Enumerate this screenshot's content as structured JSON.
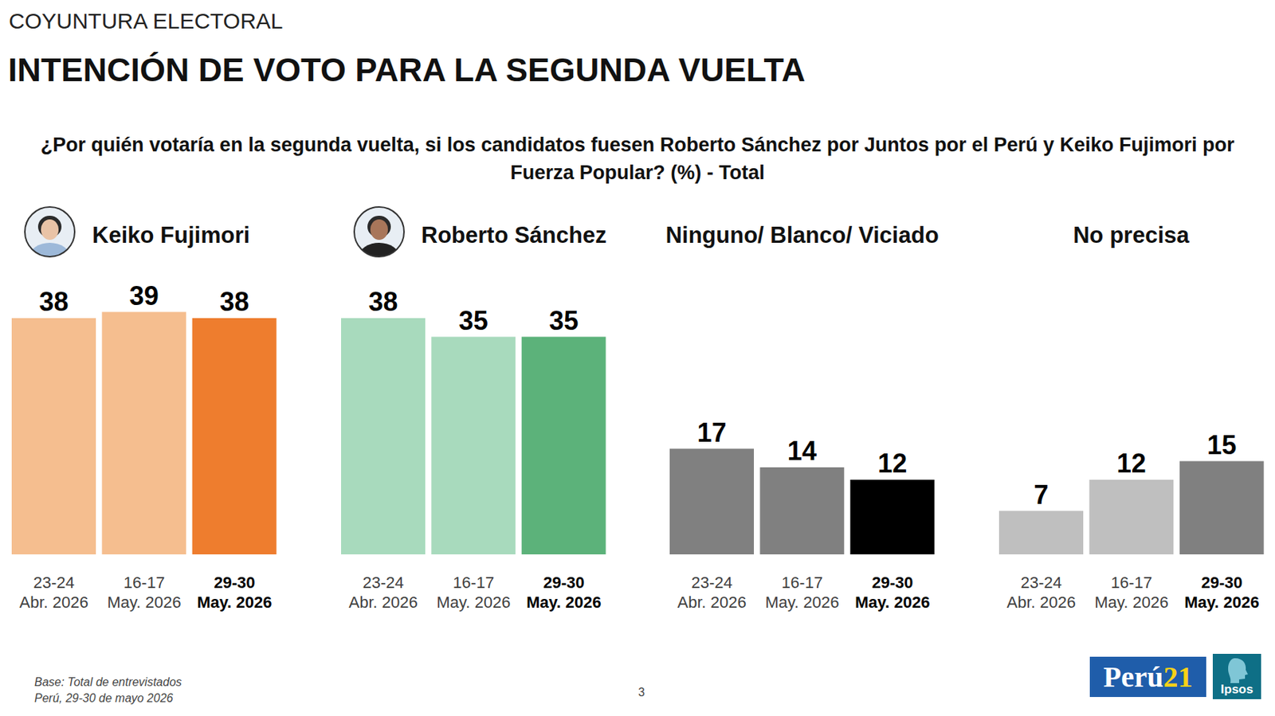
{
  "header": {
    "kicker": "COYUNTURA ELECTORAL",
    "title": "INTENCIÓN DE VOTO PARA LA SEGUNDA VUELTA",
    "question": "¿Por quién votaría en la segunda vuelta, si los candidatos fuesen Roberto Sánchez por Juntos por el Perú y Keiko Fujimori por Fuerza Popular? (%) - Total"
  },
  "chart_data": [
    {
      "type": "bar",
      "title": "Keiko Fujimori",
      "categories": [
        "23-24 Abr. 2026",
        "16-17 May. 2026",
        "29-30 May. 2026"
      ],
      "values": [
        38,
        39,
        38
      ],
      "colors": [
        "#F5BE8F",
        "#F5BE8F",
        "#EE7D2E"
      ],
      "ylim": [
        0,
        40
      ],
      "tick_labels": "x",
      "data_labels": true,
      "grid": false
    },
    {
      "type": "bar",
      "title": "Roberto Sánchez",
      "categories": [
        "23-24 Abr. 2026",
        "16-17 May. 2026",
        "29-30 May. 2026"
      ],
      "values": [
        38,
        35,
        35
      ],
      "colors": [
        "#A8DABD",
        "#A8DABD",
        "#5CB27A"
      ],
      "ylim": [
        0,
        40
      ],
      "tick_labels": "x",
      "data_labels": true,
      "grid": false
    },
    {
      "type": "bar",
      "title": "Ninguno/ Blanco/ Viciado",
      "categories": [
        "23-24 Abr. 2026",
        "16-17 May. 2026",
        "29-30 May. 2026"
      ],
      "values": [
        17,
        14,
        12
      ],
      "colors": [
        "#808080",
        "#808080",
        "#000000"
      ],
      "ylim": [
        0,
        40
      ],
      "tick_labels": "x",
      "data_labels": true,
      "grid": false
    },
    {
      "type": "bar",
      "title": "No precisa",
      "categories": [
        "23-24 Abr. 2026",
        "16-17 May. 2026",
        "29-30 May. 2026"
      ],
      "values": [
        7,
        12,
        15
      ],
      "colors": [
        "#BFBFBF",
        "#BFBFBF",
        "#808080"
      ],
      "ylim": [
        0,
        40
      ],
      "tick_labels": "x",
      "data_labels": true,
      "grid": false
    }
  ],
  "footer": {
    "base": "Base: Total de entrevistados",
    "place_date": "Perú, 29-30 de mayo 2026",
    "page": "3",
    "logos": [
      "Perú21",
      "Ipsos"
    ]
  }
}
